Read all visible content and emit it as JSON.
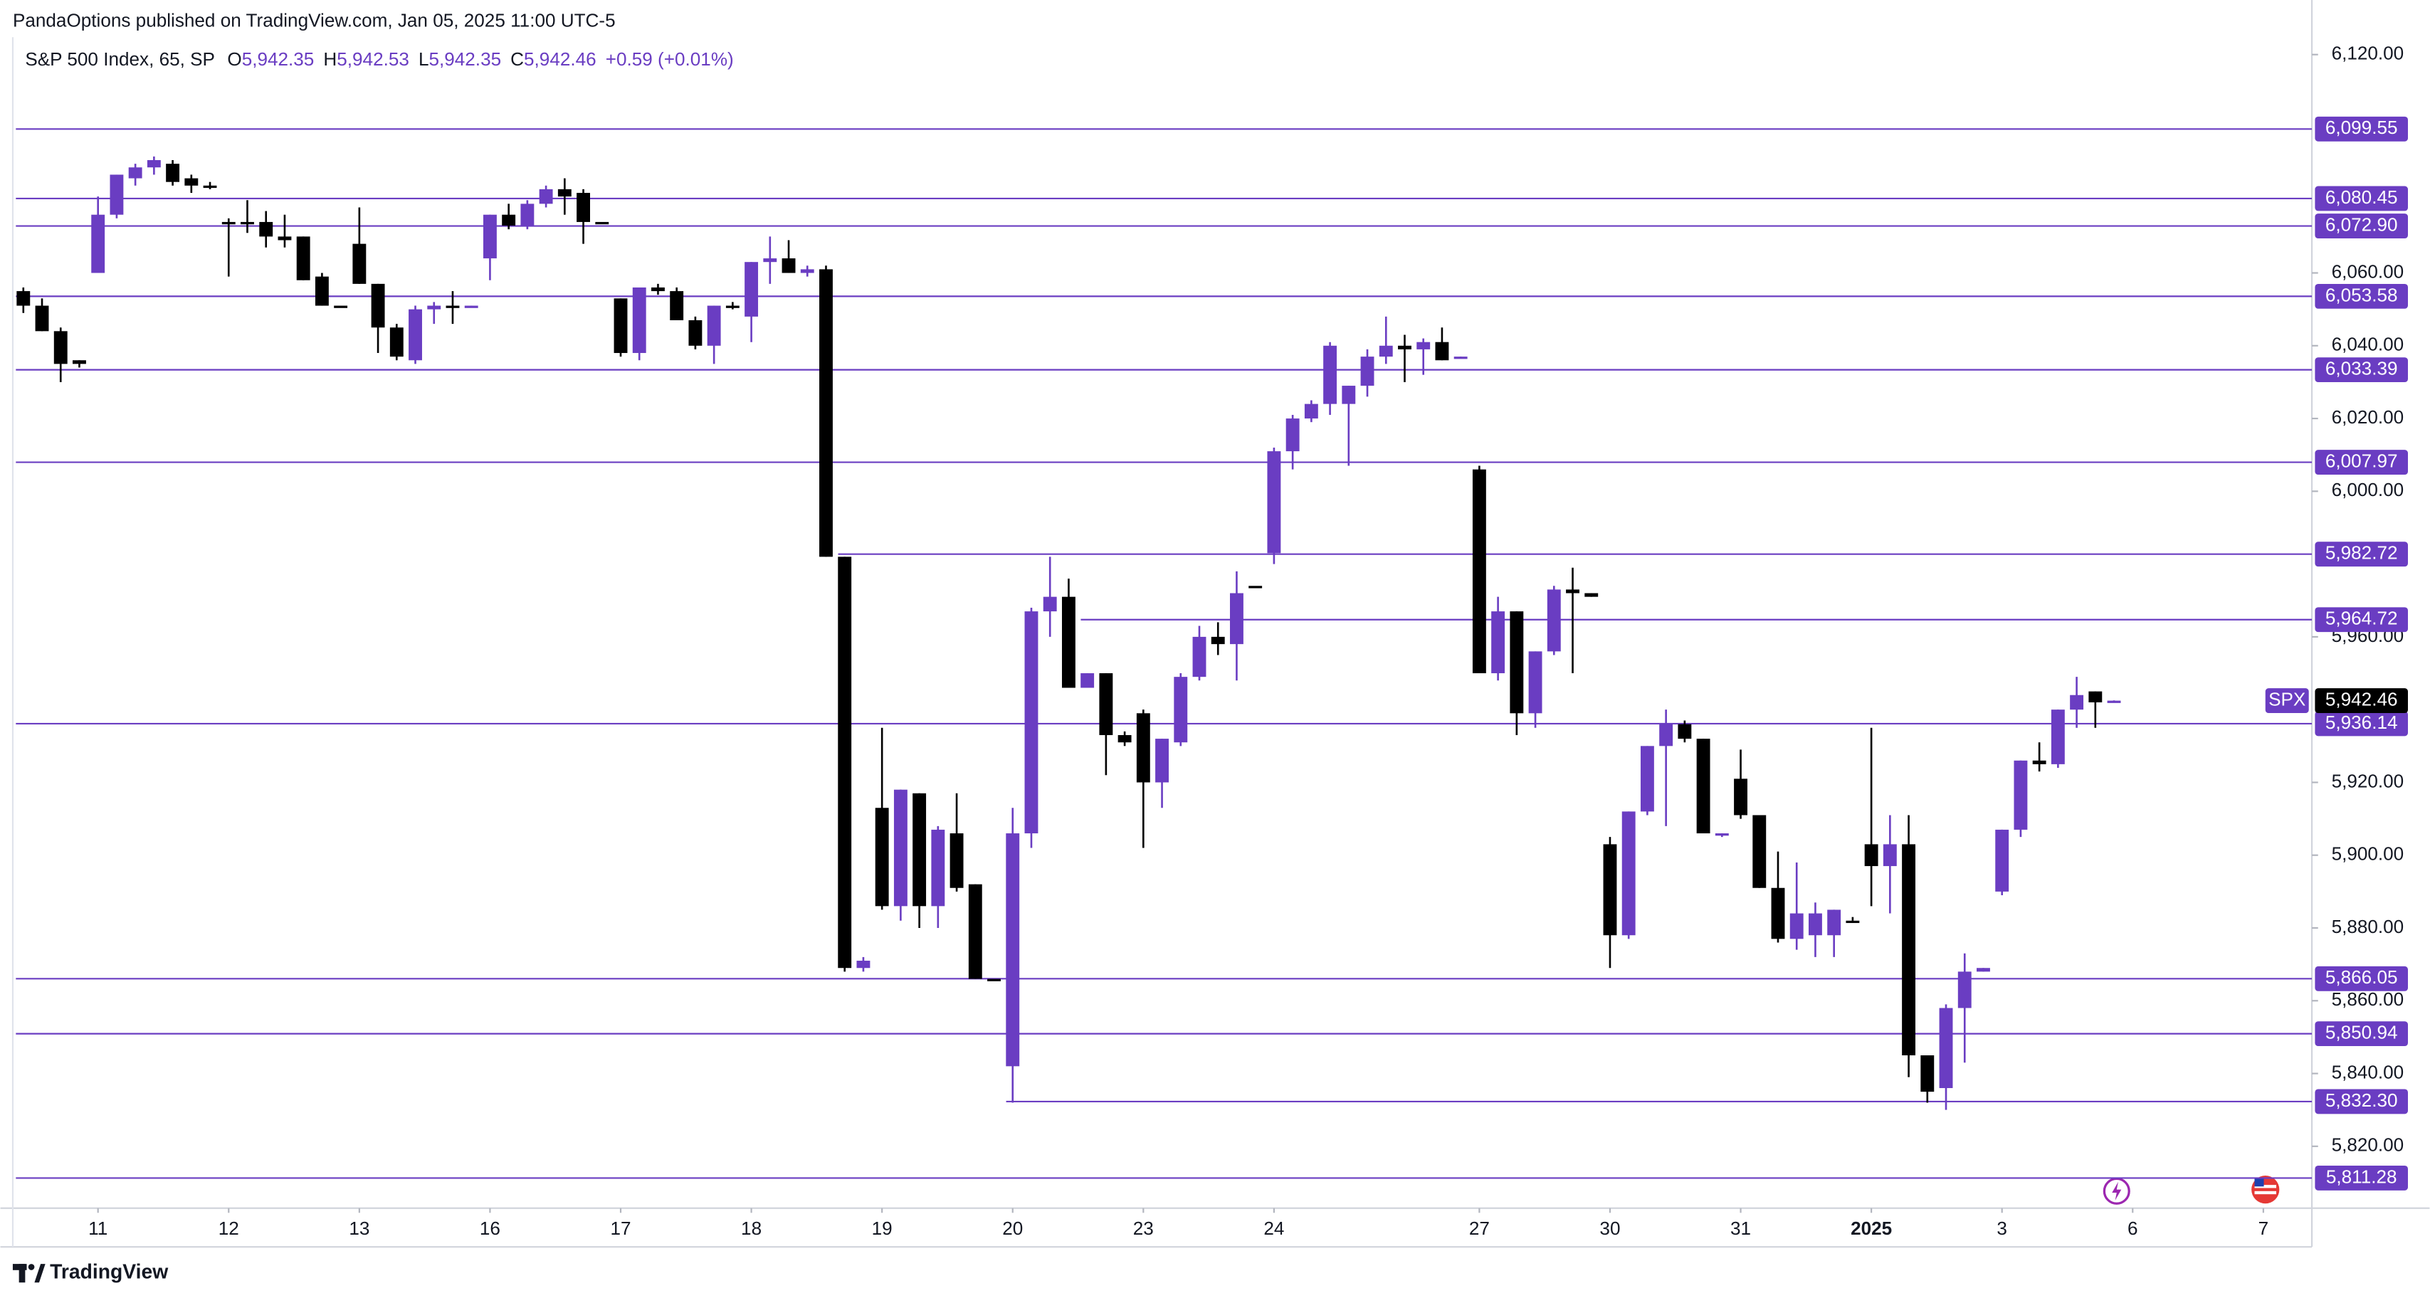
{
  "header": {
    "published": "PandaOptions published on TradingView.com, Jan 05, 2025 11:00 UTC-5"
  },
  "footer": {
    "brand": "TradingView"
  },
  "chart_data": {
    "type": "candlestick",
    "symbol": "S&P 500 Index, 65, SP",
    "ohlc": [
      {
        "key": "O",
        "value": 5942.35,
        "label": "5,942.35"
      },
      {
        "key": "H",
        "value": 5942.53,
        "label": "5,942.53"
      },
      {
        "key": "L",
        "value": 5942.35,
        "label": "5,942.35"
      },
      {
        "key": "C",
        "value": 5942.46,
        "label": "5,942.46"
      }
    ],
    "change": "+0.59 (+0.01%)",
    "up_color": "#6a3dc2",
    "down_color": "#000000",
    "level_color": "#6a3dc2",
    "open": [
      6055,
      6051,
      6044,
      6036,
      6060,
      6076,
      6086,
      6089,
      6090,
      6086,
      6084,
      6074,
      6074,
      6074,
      6070,
      6070,
      6059,
      6051,
      6068,
      6057,
      6045,
      6036,
      6050,
      6051,
      6050.5,
      6064,
      6076,
      6073,
      6079,
      6083,
      6082,
      6074,
      6053,
      6038,
      6056,
      6055,
      6047,
      6040,
      6051,
      6048,
      6063,
      6064,
      6060,
      6061,
      5982,
      5869,
      5913,
      5886,
      5917,
      5886,
      5906,
      5892,
      5866,
      5842,
      5906,
      5967,
      5971,
      5946,
      5950,
      5933,
      5939,
      5920,
      5931,
      5949,
      5960,
      5958,
      5974,
      5983,
      6011,
      6020,
      6024,
      6024,
      6029,
      6037,
      6040,
      6039,
      6041,
      6036.5,
      6006,
      5950,
      5967,
      5939,
      5956,
      5973,
      5972,
      5903,
      5878,
      5912,
      5930,
      5936,
      5932,
      5905.5,
      5921,
      5911,
      5891,
      5877,
      5878,
      5878,
      5882,
      5903,
      5897,
      5903,
      5845,
      5836,
      5858,
      5868,
      5890,
      5907,
      5926,
      5925,
      5940,
      5945,
      5942.35
    ],
    "high": [
      6056,
      6053,
      6045,
      6036,
      6081,
      6087,
      6090,
      6092,
      6091,
      6087,
      6085,
      6075,
      6080,
      6077,
      6076,
      6070,
      6060,
      6051,
      6078,
      6057,
      6046,
      6051,
      6052,
      6055,
      6051,
      6076,
      6079,
      6080,
      6084,
      6086,
      6083,
      6074,
      6053,
      6056,
      6057,
      6056,
      6048,
      6051,
      6052,
      6063,
      6070,
      6069,
      6062,
      6062,
      5982,
      5872,
      5935,
      5918,
      5917,
      5908,
      5917,
      5892,
      5866,
      5913,
      5968,
      5982,
      5976,
      5950,
      5950,
      5934,
      5940,
      5932,
      5950,
      5963,
      5964,
      5978,
      5974,
      6012,
      6021,
      6025,
      6041,
      6029,
      6039,
      6048,
      6043,
      6042,
      6045,
      6037,
      6007,
      5971,
      5967,
      5956,
      5974,
      5979,
      5972,
      5905,
      5912,
      5930,
      5940,
      5937,
      5932,
      5906,
      5929,
      5911,
      5901,
      5898,
      5887,
      5885,
      5883,
      5935,
      5911,
      5911,
      5845,
      5859,
      5873,
      5869,
      5907,
      5926,
      5931,
      5940,
      5949,
      5945,
      5942.53
    ],
    "low": [
      6049,
      6044,
      6030,
      6034,
      6060,
      6075,
      6084,
      6087,
      6084,
      6082,
      6083,
      6059,
      6071,
      6067,
      6067,
      6058,
      6051,
      6051,
      6057,
      6038,
      6036,
      6035,
      6046,
      6046,
      6050.5,
      6058,
      6072,
      6072,
      6078,
      6076,
      6068,
      6074,
      6037,
      6036,
      6054,
      6047,
      6039,
      6035,
      6050,
      6041,
      6057,
      6060,
      6059,
      5982,
      5868,
      5868,
      5885,
      5882,
      5880,
      5880,
      5890,
      5866,
      5866,
      5832,
      5902,
      5960,
      5946,
      5946,
      5922,
      5930,
      5902,
      5913,
      5930,
      5948,
      5955,
      5948,
      5974,
      5980,
      6006,
      6019,
      6021,
      6007,
      6026,
      6035,
      6030,
      6032,
      6036,
      6036.5,
      5950,
      5948,
      5933,
      5935,
      5955,
      5950,
      5971,
      5869,
      5877,
      5911,
      5908,
      5931,
      5906,
      5905,
      5910,
      5891,
      5876,
      5874,
      5872,
      5872,
      5882,
      5886,
      5884,
      5839,
      5832,
      5830,
      5843,
      5868,
      5889,
      5905,
      5923,
      5924,
      5935,
      5935,
      5942.35
    ],
    "close": [
      6051,
      6044,
      6035,
      6035,
      6076,
      6087,
      6089,
      6091,
      6085,
      6084,
      6084,
      6074,
      6074,
      6070,
      6069,
      6058,
      6051,
      6051,
      6057,
      6045,
      6037,
      6050,
      6051,
      6051,
      6051,
      6076,
      6073,
      6079,
      6083,
      6081,
      6074,
      6074,
      6038,
      6056,
      6055,
      6047,
      6040,
      6051,
      6051,
      6063,
      6064,
      6060,
      6061,
      5982,
      5869,
      5871,
      5886,
      5918,
      5886,
      5907,
      5891,
      5866,
      5866,
      5906,
      5967,
      5971,
      5946,
      5950,
      5933,
      5931,
      5920,
      5932,
      5949,
      5960,
      5958,
      5972,
      5974,
      6011,
      6020,
      6024,
      6040,
      6029,
      6037,
      6040,
      6039,
      6041,
      6036,
      6037,
      5950,
      5967,
      5939,
      5956,
      5973,
      5972,
      5971,
      5878,
      5912,
      5930,
      5936,
      5932,
      5906,
      5906,
      5911,
      5891,
      5877,
      5884,
      5884,
      5885,
      5882,
      5897,
      5903,
      5845,
      5835,
      5858,
      5868,
      5869,
      5907,
      5926,
      5925,
      5940,
      5944,
      5942,
      5942.46
    ],
    "xlim": [
      -0.4,
      122.6
    ],
    "ylim": [
      5803,
      6135
    ],
    "xticks": [
      {
        "value": 4,
        "label": "11"
      },
      {
        "value": 11,
        "label": "12"
      },
      {
        "value": 18,
        "label": "13"
      },
      {
        "value": 25,
        "label": "16"
      },
      {
        "value": 32,
        "label": "17"
      },
      {
        "value": 39,
        "label": "18"
      },
      {
        "value": 46,
        "label": "19"
      },
      {
        "value": 53,
        "label": "20"
      },
      {
        "value": 60,
        "label": "23"
      },
      {
        "value": 67,
        "label": "24"
      },
      {
        "value": 78,
        "label": "27"
      },
      {
        "value": 85,
        "label": "30"
      },
      {
        "value": 92,
        "label": "31"
      },
      {
        "value": 99,
        "label": "2025",
        "bold": true
      },
      {
        "value": 106,
        "label": "3"
      },
      {
        "value": 113,
        "label": "6"
      },
      {
        "value": 120,
        "label": "7"
      }
    ],
    "yticks": [
      {
        "value": 6120,
        "label": "6,120.00"
      },
      {
        "value": 6060,
        "label": "6,060.00"
      },
      {
        "value": 6040,
        "label": "6,040.00"
      },
      {
        "value": 6020,
        "label": "6,020.00"
      },
      {
        "value": 6000,
        "label": "6,000.00"
      },
      {
        "value": 5960,
        "label": "5,960.00"
      },
      {
        "value": 5920,
        "label": "5,920.00"
      },
      {
        "value": 5900,
        "label": "5,900.00"
      },
      {
        "value": 5880,
        "label": "5,880.00"
      },
      {
        "value": 5860,
        "label": "5,860.00"
      },
      {
        "value": 5840,
        "label": "5,840.00"
      },
      {
        "value": 5820,
        "label": "5,820.00"
      }
    ],
    "levels": [
      {
        "value": 6099.55,
        "label": "6,099.55"
      },
      {
        "value": 6080.45,
        "label": "6,080.45"
      },
      {
        "value": 6072.9,
        "label": "6,072.90"
      },
      {
        "value": 6053.58,
        "label": "6,053.58"
      },
      {
        "value": 6033.39,
        "label": "6,033.39"
      },
      {
        "value": 6007.97,
        "label": "6,007.97"
      },
      {
        "value": 5982.72,
        "label": "5,982.72",
        "from": 44
      },
      {
        "value": 5964.72,
        "label": "5,964.72",
        "from": 57
      },
      {
        "value": 5936.14,
        "label": "5,936.14"
      },
      {
        "value": 5866.05,
        "label": "5,866.05"
      },
      {
        "value": 5850.94,
        "label": "5,850.94"
      },
      {
        "value": 5832.3,
        "label": "5,832.30",
        "from": 53
      },
      {
        "value": 5811.28,
        "label": "5,811.28"
      }
    ],
    "price_label": {
      "symbol": "SPX",
      "value": 5942.46,
      "label": "5,942.46"
    }
  }
}
